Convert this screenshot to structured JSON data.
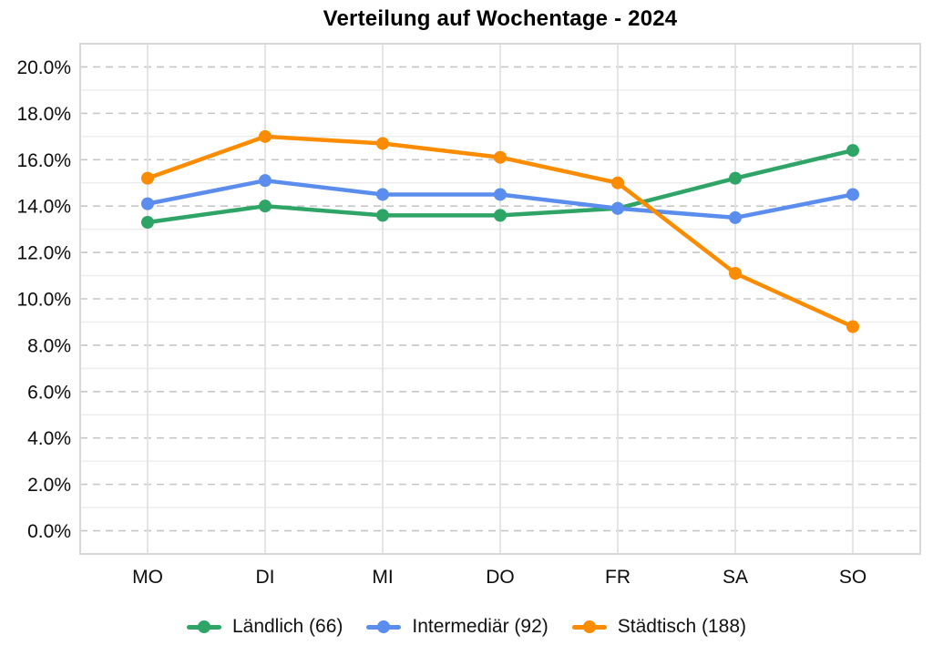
{
  "title": "Verteilung auf Wochentage - 2024",
  "chart_data": {
    "type": "line",
    "title": "Verteilung auf Wochentage - 2024",
    "categories": [
      "MO",
      "DI",
      "MI",
      "DO",
      "FR",
      "SA",
      "SO"
    ],
    "series": [
      {
        "name": "Ländlich (66)",
        "color": "#2EA566",
        "values": [
          13.3,
          14.0,
          13.6,
          13.6,
          13.9,
          15.2,
          16.4
        ]
      },
      {
        "name": "Intermediär (92)",
        "color": "#5B8DEE",
        "values": [
          14.1,
          15.1,
          14.5,
          14.5,
          13.9,
          13.5,
          14.5
        ]
      },
      {
        "name": "Städtisch (188)",
        "color": "#FB8C00",
        "values": [
          15.2,
          17.0,
          16.7,
          16.1,
          15.0,
          11.1,
          8.8
        ]
      }
    ],
    "xlabel": "",
    "ylabel": "",
    "unit": "percent",
    "ylim": [
      0,
      20
    ],
    "ytick_step": 2,
    "ytick_labels": [
      "0.0%",
      "2.0%",
      "4.0%",
      "6.0%",
      "8.0%",
      "10.0%",
      "12.0%",
      "14.0%",
      "16.0%",
      "18.0%",
      "20.0%"
    ],
    "grid": true,
    "gridline_major_style": "dashed",
    "gridline_minor_style": "solid",
    "legend_position": "bottom"
  },
  "colors": {
    "grid_major": "#C6C6C6",
    "grid_minor": "#ECECEC",
    "grid_vertical": "#E2E2E2",
    "plot_border": "#D8D8D8",
    "axis_text": "#0D0D0D"
  }
}
